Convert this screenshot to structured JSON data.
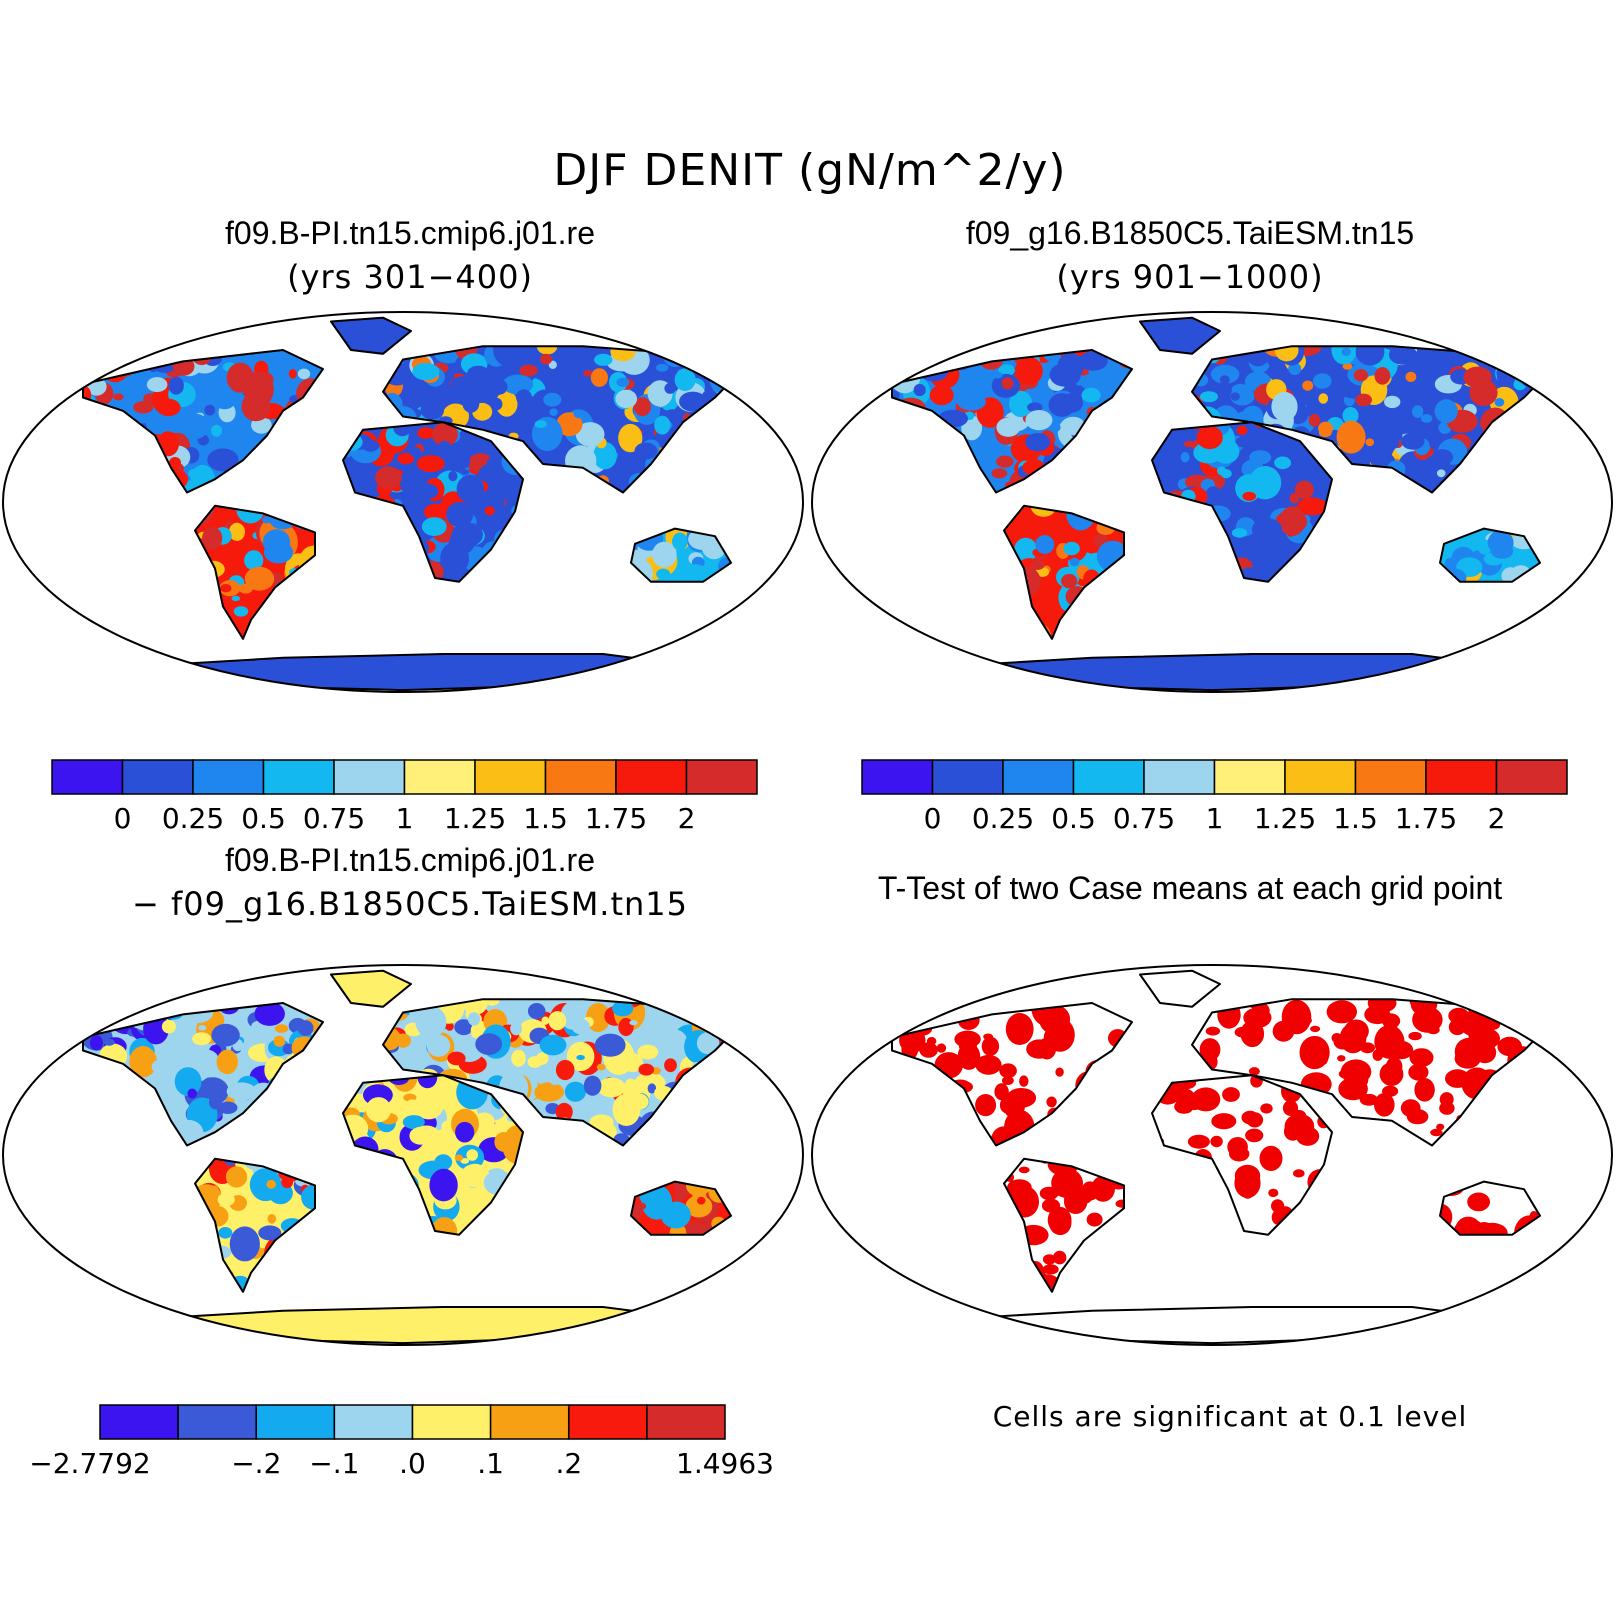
{
  "title": "DJF DENIT (gN/m^2/y)",
  "panels": [
    {
      "id": "case1",
      "title": "f09.B-PI.tn15.cmip6.j01.re",
      "subtitle": "(yrs 301−400)",
      "kind": "field"
    },
    {
      "id": "case2",
      "title": "f09_g16.B1850C5.TaiESM.tn15",
      "subtitle": "(yrs 901−1000)",
      "kind": "field"
    },
    {
      "id": "diff",
      "title": "f09.B-PI.tn15.cmip6.j01.re",
      "subtitle": "− f09_g16.B1850C5.TaiESM.tn15",
      "kind": "difference"
    },
    {
      "id": "ttest",
      "title": "T-Test of two Case means at each grid point",
      "subtitle": "",
      "kind": "significance"
    }
  ],
  "colorbars": {
    "field": {
      "colors": [
        "#3c14f0",
        "#2b50d8",
        "#1f86f0",
        "#14b8f0",
        "#9dd5ef",
        "#fff07a",
        "#fbbe14",
        "#f87814",
        "#f51a0c",
        "#d62b2b"
      ],
      "labels": [
        "0",
        "0.25",
        "0.5",
        "0.75",
        "1",
        "1.25",
        "1.5",
        "1.75",
        "2"
      ]
    },
    "difference": {
      "colors": [
        "#3c14f0",
        "#3a5ad8",
        "#14aaf0",
        "#9dd5ef",
        "#fff06a",
        "#f8a014",
        "#f81a0c",
        "#d62b2b"
      ],
      "labels": [
        "−2.7792",
        "−.2",
        "−.1",
        ".0",
        ".1",
        ".2",
        "1.4963"
      ]
    }
  },
  "significance_note": "Cells are significant at 0.1 level",
  "significance_color": "#f00000"
}
